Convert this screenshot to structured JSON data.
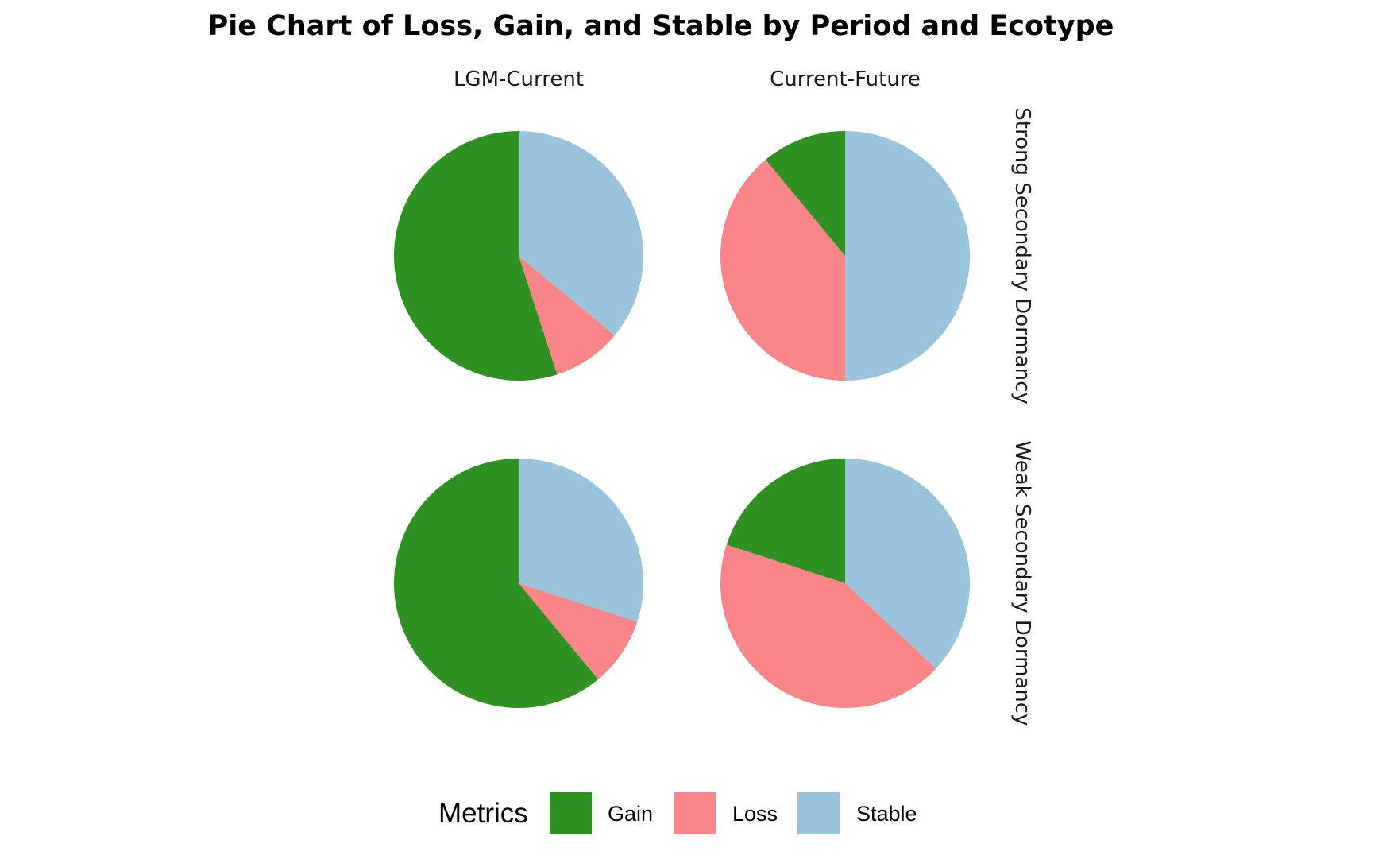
{
  "chart_data": {
    "type": "pie",
    "title": "Pie Chart of Loss, Gain, and Stable by Period and Ecotype",
    "categories": [
      "Gain",
      "Loss",
      "Stable"
    ],
    "colors": {
      "Gain": "#2e9121",
      "Loss": "#f88587",
      "Stable": "#99c4dc"
    },
    "legend": {
      "title": "Metrics",
      "position": "bottom",
      "items": [
        "Gain",
        "Loss",
        "Stable"
      ]
    },
    "columns": [
      "LGM-Current",
      "Current-Future"
    ],
    "rows": [
      "Strong Secondary Dormancy",
      "Weak Secondary Dormancy"
    ],
    "panels": [
      {
        "period": "LGM-Current",
        "ecotype": "Strong Secondary Dormancy",
        "values": {
          "Stable": 36,
          "Loss": 9,
          "Gain": 55
        }
      },
      {
        "period": "Current-Future",
        "ecotype": "Strong Secondary Dormancy",
        "values": {
          "Stable": 50,
          "Loss": 39,
          "Gain": 11
        }
      },
      {
        "period": "LGM-Current",
        "ecotype": "Weak Secondary Dormancy",
        "values": {
          "Stable": 30,
          "Loss": 9,
          "Gain": 61
        }
      },
      {
        "period": "Current-Future",
        "ecotype": "Weak Secondary Dormancy",
        "values": {
          "Stable": 37,
          "Loss": 43,
          "Gain": 20
        }
      }
    ]
  }
}
